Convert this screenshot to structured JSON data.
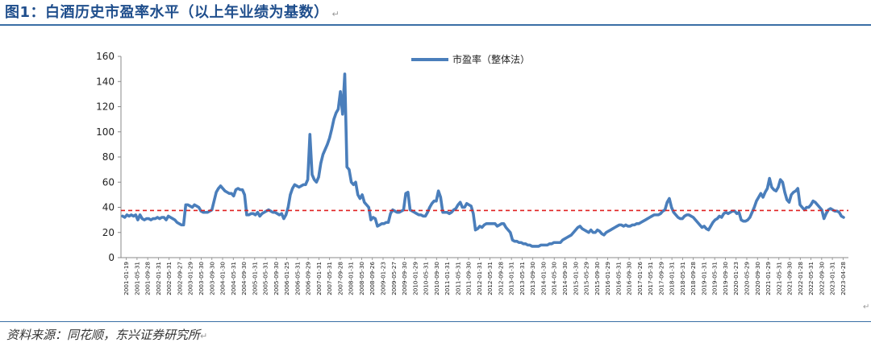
{
  "figure": {
    "title": "图1：白酒历史市盈率水平（以上年业绩为基数）",
    "paragraph_mark": "↵",
    "source": "资料来源：同花顺，东兴证券研究所"
  },
  "chart_data": {
    "type": "line",
    "title": "",
    "xlabel": "",
    "ylabel": "",
    "ylim": [
      0,
      160
    ],
    "yticks": [
      0,
      20,
      40,
      60,
      80,
      100,
      120,
      140,
      160
    ],
    "grid": false,
    "legend": "top-center",
    "x_tick_labels": [
      "2001-01-19",
      "2001-05-31",
      "2001-09-28",
      "2002-01-31",
      "2002-05-31",
      "2002-09-27",
      "2003-01-29",
      "2003-05-30",
      "2003-09-30",
      "2004-01-30",
      "2004-05-31",
      "2004-09-30",
      "2005-01-31",
      "2005-05-31",
      "2005-09-30",
      "2006-01-25",
      "2006-05-31",
      "2006-09-29",
      "2007-01-31",
      "2007-05-31",
      "2007-09-28",
      "2008-01-31",
      "2008-05-30",
      "2008-09-26",
      "2009-01-23",
      "2009-05-27",
      "2009-09-30",
      "2010-01-29",
      "2010-05-31",
      "2010-09-30",
      "2011-01-31",
      "2011-05-31",
      "2011-09-30",
      "2012-01-31",
      "2012-05-31",
      "2012-09-28",
      "2013-01-31",
      "2013-05-31",
      "2013-09-30",
      "2014-01-30",
      "2014-05-30",
      "2014-09-30",
      "2015-01-30",
      "2015-05-29",
      "2015-09-30",
      "2016-01-29",
      "2016-05-31",
      "2016-09-30",
      "2017-01-26",
      "2017-05-31",
      "2017-09-29",
      "2018-01-31",
      "2018-05-31",
      "2018-09-28",
      "2019-01-31",
      "2019-05-31",
      "2019-09-30",
      "2020-01-23",
      "2020-05-29",
      "2020-09-30",
      "2021-01-29",
      "2021-05-31",
      "2021-09-30",
      "2022-01-28",
      "2022-05-31",
      "2022-09-30",
      "2023-01-31",
      "2023-04-28"
    ],
    "series": [
      {
        "name": "市盈率（整体法）",
        "color": "#4a7ebb",
        "style": "solid",
        "values": [
          33,
          32,
          34,
          33,
          34,
          33,
          34,
          30,
          34,
          31,
          30,
          31,
          31,
          30,
          31,
          31,
          32,
          31,
          32,
          32,
          30,
          33,
          32,
          31,
          30,
          28,
          27,
          26,
          26,
          42,
          42,
          41,
          40,
          42,
          41,
          40,
          37,
          36,
          36,
          36,
          37,
          38,
          45,
          52,
          55,
          57,
          55,
          53,
          52,
          51,
          51,
          49,
          54,
          55,
          54,
          54,
          50,
          34,
          34,
          35,
          35,
          34,
          36,
          33,
          35,
          36,
          37,
          38,
          37,
          36,
          36,
          35,
          34,
          35,
          31,
          34,
          40,
          50,
          55,
          58,
          57,
          56,
          57,
          58,
          58,
          62,
          98,
          66,
          62,
          60,
          64,
          75,
          82,
          86,
          90,
          95,
          102,
          110,
          115,
          118,
          132,
          114,
          146,
          72,
          70,
          60,
          58,
          60,
          50,
          47,
          50,
          44,
          42,
          40,
          30,
          32,
          31,
          25,
          26,
          27,
          27,
          28,
          28,
          35,
          38,
          37,
          36,
          36,
          37,
          38,
          51,
          52,
          38,
          37,
          36,
          35,
          34,
          34,
          33,
          33,
          36,
          40,
          43,
          45,
          45,
          53,
          48,
          36,
          36,
          36,
          35,
          36,
          38,
          39,
          42,
          44,
          40,
          40,
          43,
          42,
          41,
          35,
          22,
          23,
          25,
          24,
          26,
          27,
          27,
          27,
          27,
          27,
          25,
          26,
          27,
          27,
          24,
          22,
          20,
          14,
          13,
          13,
          12,
          12,
          11,
          11,
          10,
          10,
          9,
          9,
          9,
          9,
          10,
          10,
          10,
          10,
          11,
          11,
          12,
          12,
          12,
          12,
          14,
          15,
          16,
          17,
          18,
          20,
          22,
          24,
          25,
          23,
          22,
          21,
          20,
          22,
          20,
          20,
          22,
          21,
          19,
          18,
          20,
          21,
          22,
          23,
          24,
          25,
          26,
          26,
          25,
          26,
          25,
          25,
          26,
          26,
          27,
          27,
          28,
          29,
          30,
          31,
          32,
          33,
          34,
          34,
          34,
          35,
          37,
          38,
          44,
          47,
          40,
          36,
          34,
          32,
          31,
          31,
          33,
          34,
          34,
          33,
          32,
          30,
          28,
          26,
          24,
          25,
          23,
          22,
          25,
          28,
          30,
          31,
          33,
          32,
          35,
          36,
          35,
          36,
          37,
          37,
          35,
          36,
          30,
          29,
          29,
          30,
          32,
          36,
          40,
          45,
          48,
          51,
          48,
          52,
          55,
          63,
          56,
          54,
          53,
          56,
          62,
          60,
          52,
          46,
          44,
          50,
          52,
          53,
          55,
          42,
          40,
          38,
          40,
          40,
          42,
          45,
          44,
          42,
          40,
          38,
          31,
          35,
          38,
          39,
          38,
          37,
          37,
          36,
          33,
          32
        ]
      },
      {
        "name": "",
        "color": "#e02020",
        "style": "dashed",
        "values": [
          37.5
        ]
      }
    ]
  }
}
